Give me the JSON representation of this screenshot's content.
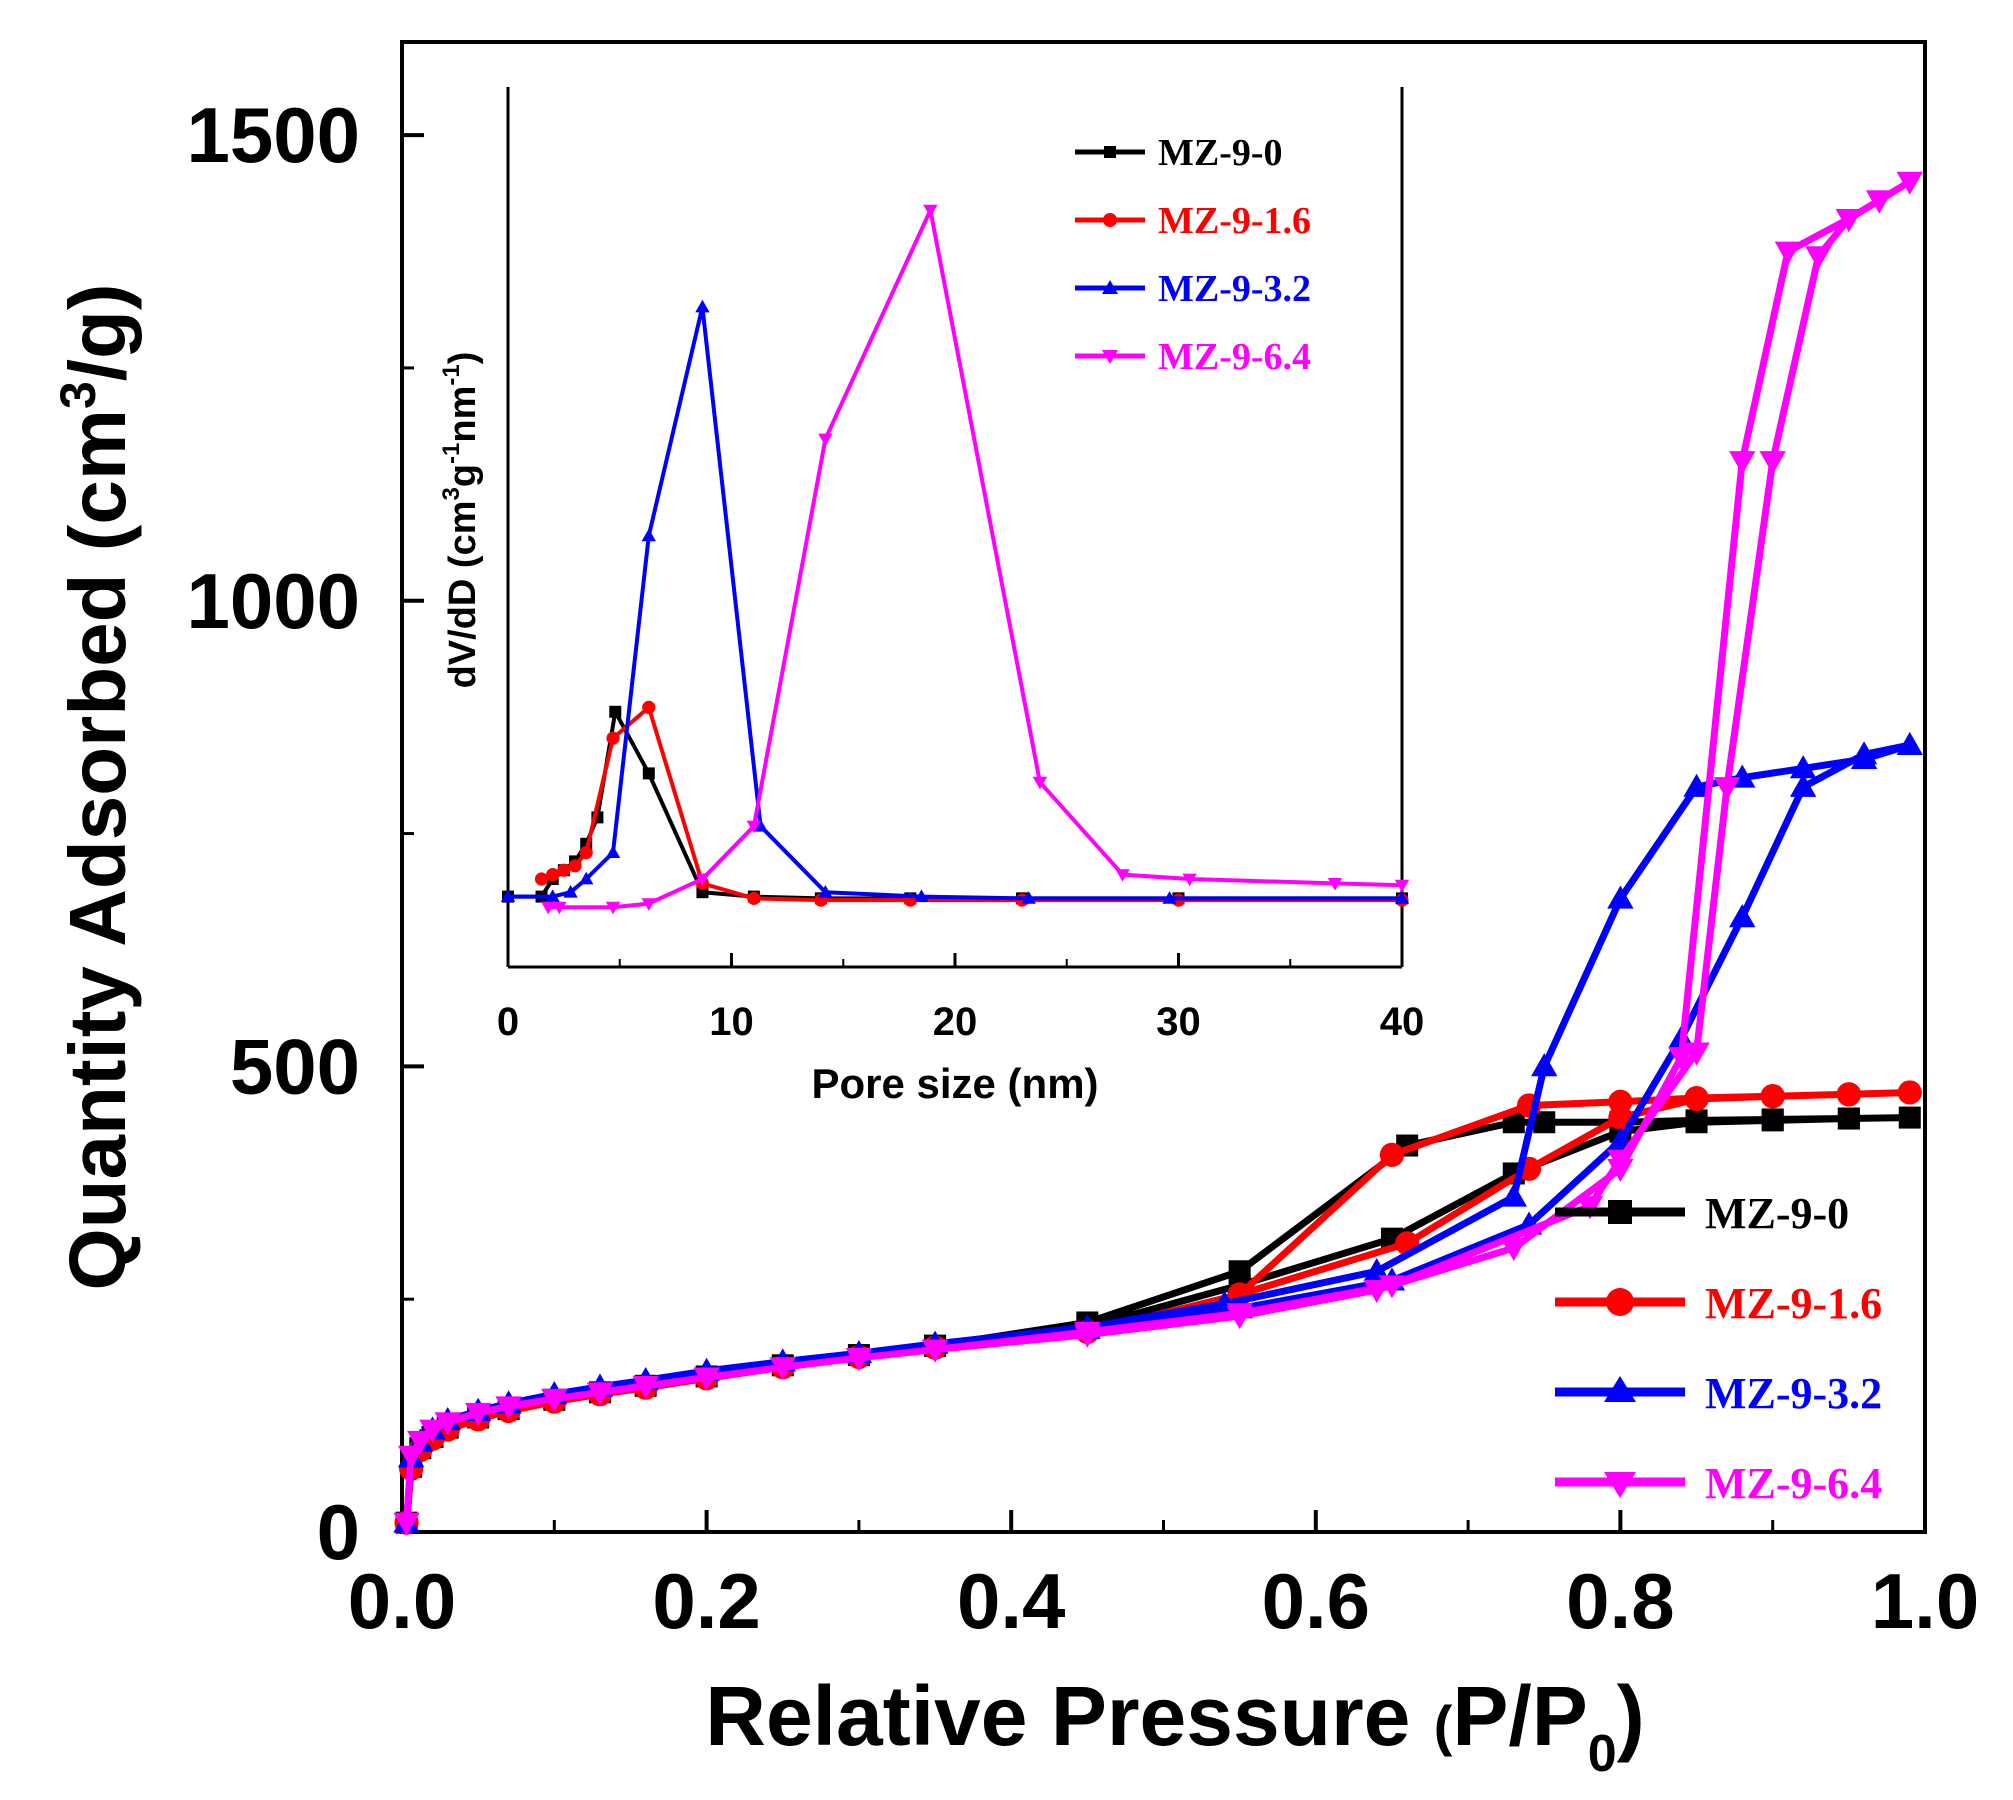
{
  "chart_data": [
    {
      "type": "line",
      "role": "main",
      "xlabel": "Relative Pressure (P/P0)",
      "xlabel_main": "Relative Pressure ",
      "xlabel_paren_open": "(",
      "xlabel_p": "P/P",
      "xlabel_sub": "0",
      "xlabel_paren_close": ")",
      "ylabel": "Quantity Adsorbed (cm3/g)",
      "ylabel_main": "Quantity Adsorbed (cm",
      "ylabel_sup": "3",
      "ylabel_end": "/g)",
      "xlim": [
        0,
        1.0
      ],
      "ylim": [
        0,
        1600
      ],
      "xticks": [
        "0.0",
        "0.2",
        "0.4",
        "0.6",
        "0.8",
        "1.0"
      ],
      "xtick_values": [
        0,
        0.2,
        0.4,
        0.6,
        0.8,
        1.0
      ],
      "yticks": [
        "0",
        "500",
        "1000",
        "1500"
      ],
      "ytick_values": [
        0,
        500,
        1000,
        1500
      ],
      "legend_position": "bottom-right",
      "series": [
        {
          "name": "MZ-9-0",
          "color": "#000000",
          "marker": "square",
          "x": [
            0.003,
            0.006,
            0.012,
            0.02,
            0.03,
            0.05,
            0.07,
            0.1,
            0.13,
            0.16,
            0.2,
            0.25,
            0.3,
            0.35,
            0.45,
            0.55,
            0.65,
            0.73,
            0.8,
            0.85,
            0.9,
            0.95,
            0.99,
            0.95,
            0.9,
            0.85,
            0.8,
            0.75,
            0.73,
            0.66,
            0.55,
            0.45,
            0.35
          ],
          "y": [
            10,
            70,
            90,
            102,
            112,
            123,
            132,
            142,
            150,
            157,
            167,
            179,
            190,
            200,
            220,
            265,
            315,
            385,
            430,
            440,
            442,
            444,
            445,
            444,
            443,
            442,
            440,
            440,
            440,
            415,
            280,
            225,
            200
          ]
        },
        {
          "name": "MZ-9-1.6",
          "color": "#ff0000",
          "marker": "circle",
          "x": [
            0.003,
            0.006,
            0.012,
            0.02,
            0.03,
            0.05,
            0.07,
            0.1,
            0.13,
            0.16,
            0.2,
            0.25,
            0.3,
            0.35,
            0.45,
            0.55,
            0.66,
            0.74,
            0.8,
            0.85,
            0.9,
            0.95,
            0.99,
            0.95,
            0.9,
            0.85,
            0.8,
            0.74,
            0.65,
            0.55,
            0.45,
            0.35
          ],
          "y": [
            10,
            68,
            88,
            100,
            110,
            121,
            130,
            140,
            148,
            155,
            165,
            177,
            188,
            198,
            215,
            255,
            310,
            390,
            445,
            465,
            468,
            470,
            472,
            470,
            468,
            466,
            462,
            458,
            405,
            255,
            215,
            198
          ]
        },
        {
          "name": "MZ-9-3.2",
          "color": "#0000ff",
          "marker": "triangle-up",
          "x": [
            0.003,
            0.006,
            0.012,
            0.02,
            0.03,
            0.05,
            0.07,
            0.1,
            0.13,
            0.16,
            0.2,
            0.25,
            0.3,
            0.35,
            0.45,
            0.55,
            0.65,
            0.74,
            0.8,
            0.84,
            0.88,
            0.92,
            0.96,
            0.99,
            0.96,
            0.92,
            0.88,
            0.85,
            0.8,
            0.75,
            0.73,
            0.64,
            0.54,
            0.45,
            0.35
          ],
          "y": [
            10,
            80,
            97,
            110,
            120,
            130,
            138,
            148,
            156,
            163,
            173,
            183,
            192,
            202,
            218,
            240,
            270,
            330,
            420,
            530,
            660,
            800,
            835,
            845,
            830,
            820,
            810,
            800,
            680,
            500,
            360,
            280,
            245,
            220,
            202
          ]
        },
        {
          "name": "MZ-9-6.4",
          "color": "#ff00ff",
          "marker": "triangle-down",
          "x": [
            0.003,
            0.006,
            0.012,
            0.02,
            0.03,
            0.05,
            0.07,
            0.1,
            0.13,
            0.16,
            0.2,
            0.25,
            0.3,
            0.35,
            0.45,
            0.55,
            0.64,
            0.73,
            0.8,
            0.84,
            0.88,
            0.91,
            0.95,
            0.97,
            0.99,
            0.97,
            0.95,
            0.93,
            0.9,
            0.87,
            0.85,
            0.8,
            0.78,
            0.65,
            0.55,
            0.45,
            0.35
          ],
          "y": [
            10,
            82,
            98,
            110,
            118,
            128,
            135,
            143,
            150,
            157,
            166,
            177,
            187,
            196,
            212,
            232,
            260,
            305,
            390,
            510,
            1150,
            1375,
            1410,
            1430,
            1450,
            1430,
            1410,
            1370,
            1150,
            800,
            515,
            400,
            350,
            265,
            235,
            215,
            196
          ]
        }
      ]
    },
    {
      "type": "line",
      "role": "inset",
      "xlabel": "Pore size (nm)",
      "ylabel": "dV/dD (cm3g-1nm-1)",
      "ylabel_a": "dV/dD (cm",
      "ylabel_sup1": "3",
      "ylabel_b": "g",
      "ylabel_sup2": "-1",
      "ylabel_c": "nm",
      "ylabel_sup3": "-1",
      "ylabel_d": ")",
      "xlim": [
        0,
        40
      ],
      "ylim": [
        0,
        1
      ],
      "xticks": [
        "0",
        "10",
        "20",
        "30",
        "40"
      ],
      "xtick_values": [
        0,
        10,
        20,
        30,
        40
      ],
      "legend_position": "top-right",
      "series": [
        {
          "name": "MZ-9-0",
          "color": "#000000",
          "marker": "square",
          "x": [
            0,
            1.5,
            2,
            2.5,
            3,
            3.5,
            4,
            4.8,
            6.3,
            8.7,
            11,
            14,
            18,
            23,
            30,
            40
          ],
          "y": [
            0.08,
            0.08,
            0.1,
            0.11,
            0.12,
            0.14,
            0.17,
            0.29,
            0.22,
            0.085,
            0.08,
            0.078,
            0.078,
            0.078,
            0.078,
            0.078
          ]
        },
        {
          "name": "MZ-9-1.6",
          "color": "#ff0000",
          "marker": "circle",
          "x": [
            1.5,
            2,
            2.5,
            3,
            3.5,
            4.7,
            6.3,
            8.7,
            11,
            14,
            18,
            23,
            30,
            40
          ],
          "y": [
            0.1,
            0.105,
            0.11,
            0.115,
            0.13,
            0.26,
            0.295,
            0.095,
            0.078,
            0.076,
            0.076,
            0.076,
            0.076,
            0.076
          ]
        },
        {
          "name": "MZ-9-3.2",
          "color": "#0000ff",
          "marker": "triangle-up",
          "x": [
            0,
            2,
            2.8,
            3.5,
            4.7,
            6.3,
            8.7,
            11.3,
            14.2,
            18.5,
            23.3,
            29.6,
            40
          ],
          "y": [
            0.08,
            0.08,
            0.085,
            0.1,
            0.13,
            0.49,
            0.75,
            0.16,
            0.085,
            0.08,
            0.078,
            0.078,
            0.078
          ]
        },
        {
          "name": "MZ-9-6.4",
          "color": "#ff00ff",
          "marker": "triangle-down",
          "x": [
            1.8,
            2.3,
            4.7,
            6.3,
            8.7,
            11,
            14.2,
            18.9,
            23.8,
            27.5,
            30.5,
            37,
            40
          ],
          "y": [
            0.068,
            0.068,
            0.068,
            0.072,
            0.1,
            0.16,
            0.6,
            0.86,
            0.21,
            0.105,
            0.1,
            0.095,
            0.093
          ]
        }
      ]
    }
  ]
}
